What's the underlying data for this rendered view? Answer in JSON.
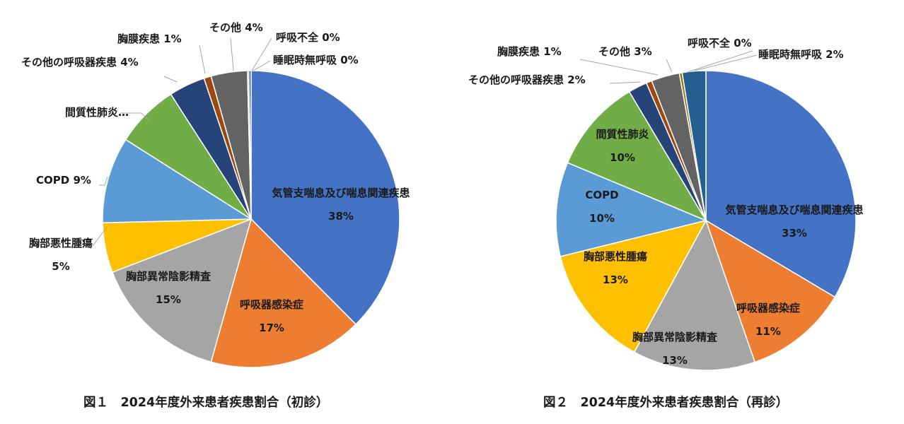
{
  "chart_data": [
    {
      "type": "pie",
      "title": "図１　2024年度外来患者疾患割合（初診）",
      "slices": [
        {
          "label": "気管支喘息及び喘息関連疾患",
          "pct_label": "38%",
          "value": 38,
          "color": "#4472C4"
        },
        {
          "label": "呼吸器感染症",
          "pct_label": "17%",
          "value": 17,
          "color": "#ED7D31"
        },
        {
          "label": "胸部異常陰影精査",
          "pct_label": "15%",
          "value": 15,
          "color": "#A5A5A5"
        },
        {
          "label": "胸部悪性腫瘍",
          "pct_label": "5%",
          "value": 5.5,
          "color": "#FFC000"
        },
        {
          "label": "COPD",
          "pct_label": "9%",
          "value": 9.5,
          "color": "#5B9BD5"
        },
        {
          "label": "間質性肺炎…",
          "pct_label": "",
          "value": 7,
          "color": "#70AD47"
        },
        {
          "label": "その他の呼吸器疾患",
          "pct_label": "4%",
          "value": 4,
          "color": "#264478"
        },
        {
          "label": "胸膜疾患",
          "pct_label": "1%",
          "value": 0.8,
          "color": "#9E480E"
        },
        {
          "label": "その他",
          "pct_label": "4%",
          "value": 4,
          "color": "#636363"
        },
        {
          "label": "呼吸不全",
          "pct_label": "0%",
          "value": 0.15,
          "color": "#997300"
        },
        {
          "label": "睡眠時無呼吸",
          "pct_label": "0%",
          "value": 0.25,
          "color": "#255E91"
        }
      ]
    },
    {
      "type": "pie",
      "title": "図２　2024年度外来患者疾患割合（再診）",
      "slices": [
        {
          "label": "気管支喘息及び喘息関連疾患",
          "pct_label": "33%",
          "value": 33,
          "color": "#4472C4"
        },
        {
          "label": "呼吸器感染症",
          "pct_label": "11%",
          "value": 11,
          "color": "#ED7D31"
        },
        {
          "label": "胸部異常陰影精査",
          "pct_label": "13%",
          "value": 13,
          "color": "#A5A5A5"
        },
        {
          "label": "胸部悪性腫瘍",
          "pct_label": "13%",
          "value": 13,
          "color": "#FFC000"
        },
        {
          "label": "COPD",
          "pct_label": "10%",
          "value": 10,
          "color": "#5B9BD5"
        },
        {
          "label": "間質性肺炎",
          "pct_label": "10%",
          "value": 10,
          "color": "#70AD47"
        },
        {
          "label": "その他の呼吸器疾患",
          "pct_label": "2%",
          "value": 2,
          "color": "#264478"
        },
        {
          "label": "胸膜疾患",
          "pct_label": "1%",
          "value": 0.6,
          "color": "#9E480E"
        },
        {
          "label": "その他",
          "pct_label": "3%",
          "value": 3,
          "color": "#636363"
        },
        {
          "label": "呼吸不全",
          "pct_label": "0%",
          "value": 0.3,
          "color": "#997300"
        },
        {
          "label": "睡眠時無呼吸",
          "pct_label": "2%",
          "value": 2.5,
          "color": "#255E91"
        }
      ]
    }
  ]
}
